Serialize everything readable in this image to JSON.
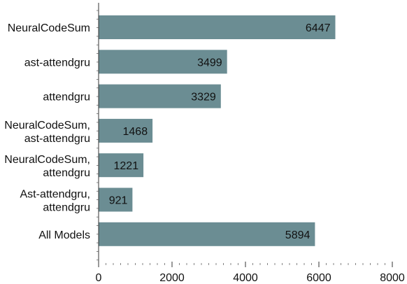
{
  "chart_data": {
    "type": "bar",
    "orientation": "horizontal",
    "title": "",
    "xlabel": "",
    "ylabel": "",
    "categories": [
      [
        "NeuralCodeSum"
      ],
      [
        "ast-attendgru"
      ],
      [
        "attendgru"
      ],
      [
        "NeuralCodeSum,",
        "ast-attendgru"
      ],
      [
        "NeuralCodeSum,",
        "attendgru"
      ],
      [
        "Ast-attendgru,",
        "attendgru"
      ],
      [
        "All Models"
      ]
    ],
    "values": [
      6447,
      3499,
      3329,
      1468,
      1221,
      921,
      5894
    ],
    "value_labels": [
      "6447",
      "3499",
      "3329",
      "1468",
      "1221",
      "921",
      "5894"
    ],
    "xlim": [
      0,
      8000
    ],
    "x_ticks": [
      0,
      2000,
      4000,
      6000,
      8000
    ],
    "x_tick_labels": [
      "0",
      "2000",
      "4000",
      "6000",
      "8000"
    ],
    "grid": false,
    "legend": "none",
    "bar_color": "#6b8d93"
  }
}
